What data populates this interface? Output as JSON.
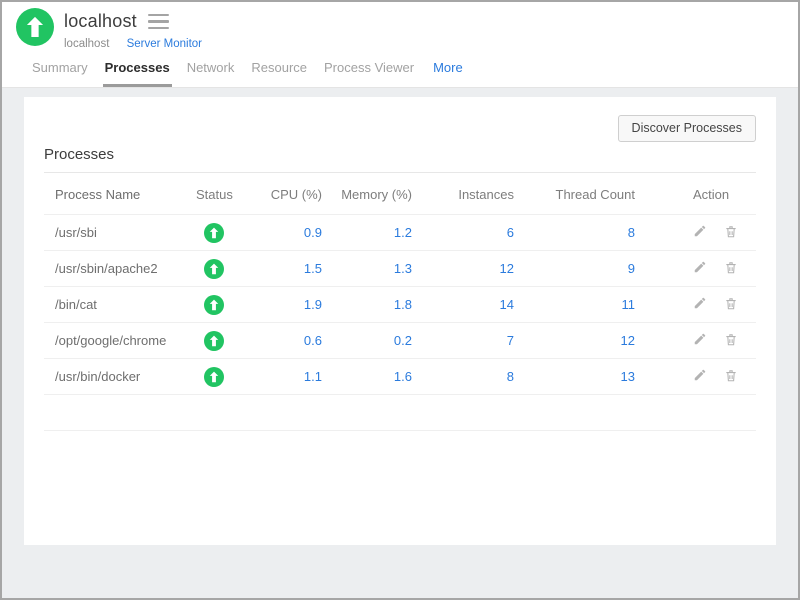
{
  "header": {
    "title": "localhost",
    "host_label": "localhost",
    "monitor_link": "Server Monitor"
  },
  "tabs": [
    {
      "label": "Summary",
      "active": false
    },
    {
      "label": "Processes",
      "active": true
    },
    {
      "label": "Network",
      "active": false
    },
    {
      "label": "Resource",
      "active": false
    },
    {
      "label": "Process Viewer",
      "active": false
    },
    {
      "label": "More",
      "active": false
    }
  ],
  "toolbar": {
    "discover_label": "Discover Processes"
  },
  "section": {
    "title": "Processes"
  },
  "table": {
    "columns": [
      "Process Name",
      "Status",
      "CPU (%)",
      "Memory (%)",
      "Instances",
      "Thread Count",
      "Action"
    ],
    "rows": [
      {
        "name": "/usr/sbi",
        "status": "up",
        "cpu": "0.9",
        "memory": "1.2",
        "instances": "6",
        "threads": "8"
      },
      {
        "name": "/usr/sbin/apache2",
        "status": "up",
        "cpu": "1.5",
        "memory": "1.3",
        "instances": "12",
        "threads": "9"
      },
      {
        "name": "/bin/cat",
        "status": "up",
        "cpu": "1.9",
        "memory": "1.8",
        "instances": "14",
        "threads": "11"
      },
      {
        "name": "/opt/google/chrome",
        "status": "up",
        "cpu": "0.6",
        "memory": "0.2",
        "instances": "7",
        "threads": "12"
      },
      {
        "name": "/usr/bin/docker",
        "status": "up",
        "cpu": "1.1",
        "memory": "1.6",
        "instances": "8",
        "threads": "13"
      }
    ]
  },
  "colors": {
    "status_green": "#21c462",
    "link_blue": "#2b7bdd",
    "background_gray": "#eceef0",
    "active_tab_underline": "#9b9b9b"
  }
}
